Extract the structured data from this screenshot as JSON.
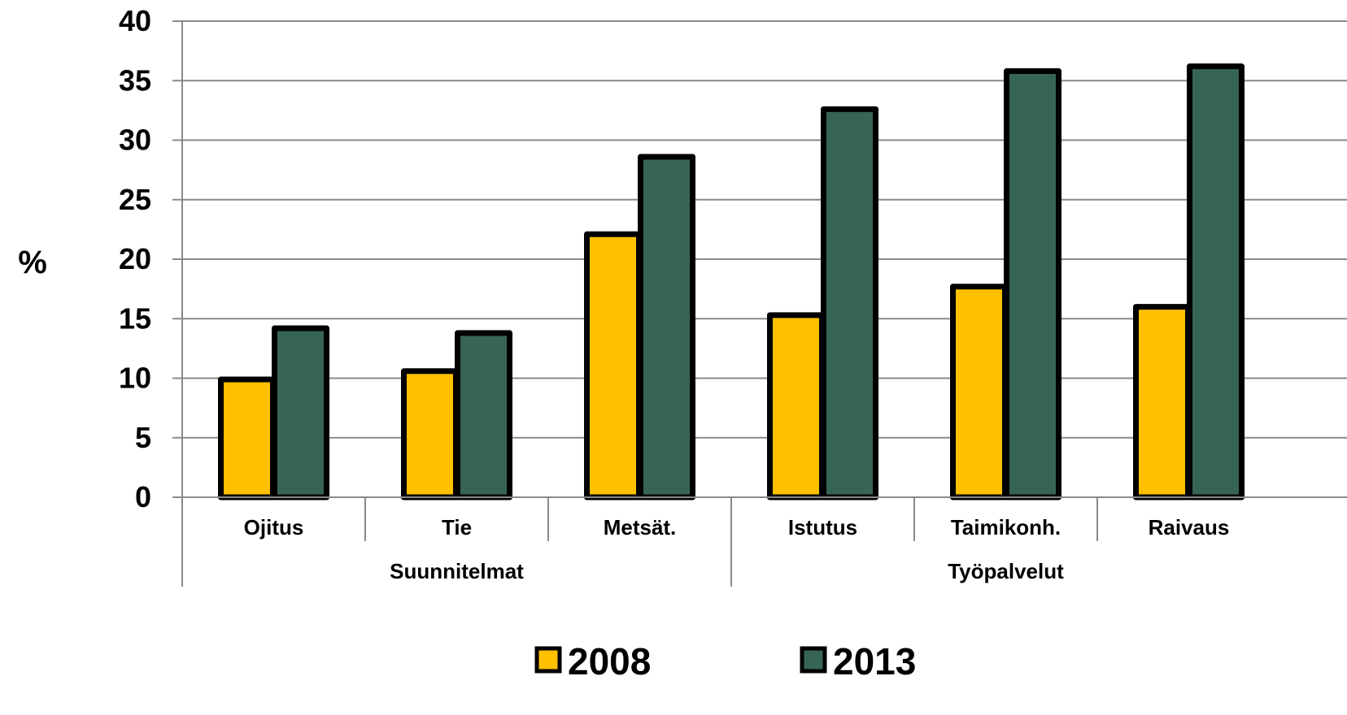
{
  "chart_data": {
    "type": "bar",
    "ylabel": "%",
    "ylim": [
      0,
      40
    ],
    "yticks": [
      "0",
      "5",
      "10",
      "15",
      "20",
      "25",
      "30",
      "35",
      "40"
    ],
    "grid": true,
    "categories": [
      "Ojitus",
      "Tie",
      "Metsät.",
      "Istutus",
      "Taimikonh.",
      "Raivaus"
    ],
    "groups": [
      {
        "label": "Suunnitelmat",
        "span": 3
      },
      {
        "label": "Työpalvelut",
        "span": 3
      }
    ],
    "series": [
      {
        "name": "2008",
        "color": "#FFC000",
        "values": [
          9.9,
          10.6,
          22.1,
          15.3,
          17.7,
          16.0
        ]
      },
      {
        "name": "2013",
        "color": "#376555",
        "values": [
          14.2,
          13.8,
          28.6,
          32.6,
          35.8,
          36.2
        ]
      }
    ],
    "legend_position": "bottom"
  }
}
